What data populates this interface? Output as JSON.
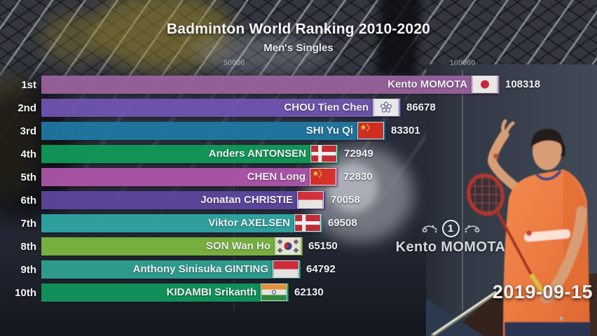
{
  "header": {
    "title": "Badminton World Ranking 2010-2020",
    "subtitle": "Men's Singles"
  },
  "axis": {
    "ticks": [
      {
        "label": "50000",
        "value": 50000
      },
      {
        "label": "100000",
        "value": 100000
      }
    ]
  },
  "chart_data": {
    "type": "bar",
    "orientation": "horizontal",
    "title": "Badminton World Ranking 2010-2020",
    "subtitle": "Men's Singles",
    "date": "2019-09-15",
    "value_axis": {
      "ticks": [
        50000,
        100000
      ],
      "grid": true
    },
    "rows": [
      {
        "rank": "1st",
        "player": "Kento MOMOTA",
        "country": "Japan",
        "flag": "jp",
        "value": 108318,
        "color": "#9b639e"
      },
      {
        "rank": "2nd",
        "player": "CHOU Tien Chen",
        "country": "Chinese Taipei",
        "flag": "tpe",
        "value": 86678,
        "color": "#7155b2"
      },
      {
        "rank": "3rd",
        "player": "SHI Yu Qi",
        "country": "China",
        "flag": "cn",
        "value": 83301,
        "color": "#2079a4"
      },
      {
        "rank": "4th",
        "player": "Anders ANTONSEN",
        "country": "Denmark",
        "flag": "dk",
        "value": 72949,
        "color": "#109c59"
      },
      {
        "rank": "5th",
        "player": "CHEN Long",
        "country": "China",
        "flag": "cn",
        "value": 72830,
        "color": "#b156ac"
      },
      {
        "rank": "6th",
        "player": "Jonatan CHRISTIE",
        "country": "Indonesia",
        "flag": "id",
        "value": 70058,
        "color": "#5f47a1"
      },
      {
        "rank": "7th",
        "player": "Viktor AXELSEN",
        "country": "Denmark",
        "flag": "dk",
        "value": 69508,
        "color": "#2fa9a6"
      },
      {
        "rank": "8th",
        "player": "SON Wan Ho",
        "country": "South Korea",
        "flag": "kr",
        "value": 65150,
        "color": "#7eba40"
      },
      {
        "rank": "9th",
        "player": "Anthony Sinisuka GINTING",
        "country": "Indonesia",
        "flag": "id",
        "value": 64792,
        "color": "#2fa494"
      },
      {
        "rank": "10th",
        "player": "KIDAMBI Srikanth",
        "country": "India",
        "flag": "in",
        "value": 62130,
        "color": "#12985c"
      }
    ]
  },
  "leader": {
    "badge": "1",
    "name": "Kento MOMOTA"
  },
  "date_display": "2019-09-15",
  "icons": {
    "dropdown": "▾"
  }
}
